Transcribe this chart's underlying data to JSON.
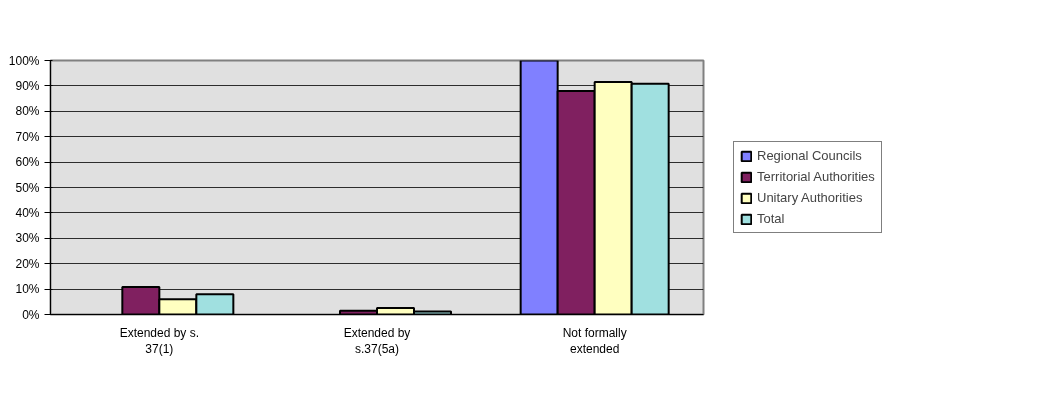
{
  "chart_data": {
    "type": "bar",
    "categories": [
      "Extended by s. 37(1)",
      "Extended by s.37(5a)",
      "Not formally extended"
    ],
    "series": [
      {
        "name": "Regional Councils",
        "color": "#8080ff",
        "values": [
          null,
          null,
          100
        ]
      },
      {
        "name": "Territorial Authorities",
        "color": "#802060",
        "values": [
          10.8,
          1.5,
          88
        ]
      },
      {
        "name": "Unitary Authorities",
        "color": "#ffffc0",
        "values": [
          6,
          2.6,
          91.5
        ]
      },
      {
        "name": "Total",
        "color": "#a0e0e0",
        "values": [
          8,
          1.2,
          90.8
        ]
      }
    ],
    "ylim": [
      0,
      100
    ],
    "yticks": [
      {
        "value": 0,
        "label": "0%"
      },
      {
        "value": 10,
        "label": "10%"
      },
      {
        "value": 20,
        "label": "20%"
      },
      {
        "value": 30,
        "label": "30%"
      },
      {
        "value": 40,
        "label": "40%"
      },
      {
        "value": 50,
        "label": "50%"
      },
      {
        "value": 60,
        "label": "60%"
      },
      {
        "value": 70,
        "label": "70%"
      },
      {
        "value": 80,
        "label": "80%"
      },
      {
        "value": 90,
        "label": "90%"
      },
      {
        "value": 100,
        "label": "100%"
      }
    ],
    "grid": "y",
    "legend": "right"
  }
}
